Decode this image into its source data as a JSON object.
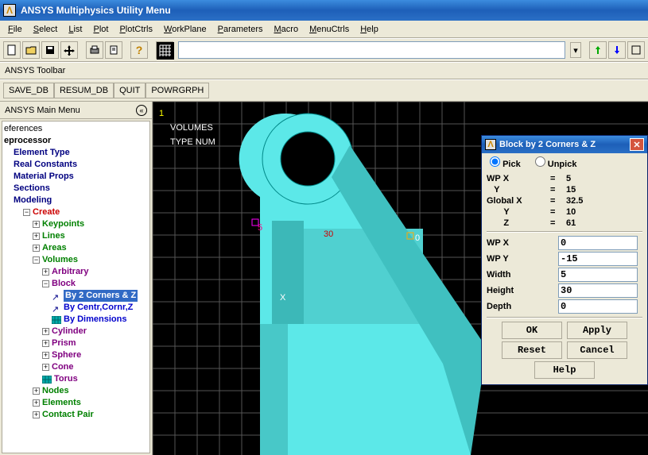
{
  "titlebar": {
    "icon_letter": "Λ",
    "title": "ANSYS Multiphysics Utility Menu"
  },
  "menubar": [
    "File",
    "Select",
    "List",
    "Plot",
    "PlotCtrls",
    "WorkPlane",
    "Parameters",
    "Macro",
    "MenuCtrls",
    "Help"
  ],
  "ansys_toolbar_label": "ANSYS Toolbar",
  "toolbar_buttons": [
    "SAVE_DB",
    "RESUM_DB",
    "QUIT",
    "POWRGRPH"
  ],
  "sidebar_header": "ANSYS Main Menu",
  "tree": [
    {
      "indent": 0,
      "pre": "",
      "label": "eferences",
      "clr": "clr-black"
    },
    {
      "indent": 0,
      "pre": "",
      "label": "eprocessor",
      "clr": "clr-black",
      "bold": true
    },
    {
      "indent": 1,
      "pre": "",
      "label": "Element Type",
      "clr": "clr-darkblue"
    },
    {
      "indent": 1,
      "pre": "",
      "label": "Real Constants",
      "clr": "clr-darkblue"
    },
    {
      "indent": 1,
      "pre": "",
      "label": "Material Props",
      "clr": "clr-darkblue"
    },
    {
      "indent": 1,
      "pre": "",
      "label": "Sections",
      "clr": "clr-darkblue"
    },
    {
      "indent": 1,
      "pre": "",
      "label": "Modeling",
      "clr": "clr-darkblue"
    },
    {
      "indent": 2,
      "pre": "minus",
      "label": "Create",
      "clr": "clr-red",
      "bold": true
    },
    {
      "indent": 3,
      "pre": "plus",
      "label": "Keypoints",
      "clr": "clr-green",
      "bold": true
    },
    {
      "indent": 3,
      "pre": "plus",
      "label": "Lines",
      "clr": "clr-green",
      "bold": true
    },
    {
      "indent": 3,
      "pre": "plus",
      "label": "Areas",
      "clr": "clr-green",
      "bold": true
    },
    {
      "indent": 3,
      "pre": "minus",
      "label": "Volumes",
      "clr": "clr-green",
      "bold": true
    },
    {
      "indent": 4,
      "pre": "plus",
      "label": "Arbitrary",
      "clr": "clr-purple",
      "bold": true
    },
    {
      "indent": 4,
      "pre": "minus",
      "label": "Block",
      "clr": "clr-purple",
      "bold": true
    },
    {
      "indent": 5,
      "pre": "arrow",
      "label": "By 2 Corners & Z",
      "clr": "clr-blue",
      "sel": true
    },
    {
      "indent": 5,
      "pre": "arrow",
      "label": "By Centr,Cornr,Z",
      "clr": "clr-blue"
    },
    {
      "indent": 5,
      "pre": "grid",
      "label": "By Dimensions",
      "clr": "clr-blue"
    },
    {
      "indent": 4,
      "pre": "plus",
      "label": "Cylinder",
      "clr": "clr-purple",
      "bold": true
    },
    {
      "indent": 4,
      "pre": "plus",
      "label": "Prism",
      "clr": "clr-purple",
      "bold": true
    },
    {
      "indent": 4,
      "pre": "plus",
      "label": "Sphere",
      "clr": "clr-purple",
      "bold": true
    },
    {
      "indent": 4,
      "pre": "plus",
      "label": "Cone",
      "clr": "clr-purple",
      "bold": true
    },
    {
      "indent": 4,
      "pre": "grid",
      "label": "Torus",
      "clr": "clr-purple",
      "bold": true
    },
    {
      "indent": 3,
      "pre": "plus",
      "label": "Nodes",
      "clr": "clr-green",
      "bold": true
    },
    {
      "indent": 3,
      "pre": "plus",
      "label": "Elements",
      "clr": "clr-green",
      "bold": true
    },
    {
      "indent": 3,
      "pre": "plus",
      "label": "Contact Pair",
      "clr": "clr-green",
      "bold": true
    }
  ],
  "viewport": {
    "label_one": "1",
    "label_volumes": "VOLUMES",
    "label_typenum": "TYPE NUM",
    "num_5": "5",
    "num_30": "30",
    "num_0": "0",
    "axis_x": "X"
  },
  "dialog": {
    "title": "Block by 2 Corners & Z",
    "pick": "Pick",
    "unpick": "Unpick",
    "rows": [
      {
        "k": "WP X",
        "eq": "=",
        "v": "5"
      },
      {
        "k": "   Y",
        "eq": "=",
        "v": "15"
      },
      {
        "k": "Global X",
        "eq": "=",
        "v": "32.5"
      },
      {
        "k": "       Y",
        "eq": "=",
        "v": "10"
      },
      {
        "k": "       Z",
        "eq": "=",
        "v": "61"
      }
    ],
    "inputs": [
      {
        "lbl": "WP X",
        "val": "0"
      },
      {
        "lbl": "WP Y",
        "val": "-15"
      },
      {
        "lbl": "Width",
        "val": "5"
      },
      {
        "lbl": "Height",
        "val": "30"
      },
      {
        "lbl": "Depth",
        "val": "0"
      }
    ],
    "buttons": {
      "ok": "OK",
      "apply": "Apply",
      "reset": "Reset",
      "cancel": "Cancel",
      "help": "Help"
    }
  }
}
